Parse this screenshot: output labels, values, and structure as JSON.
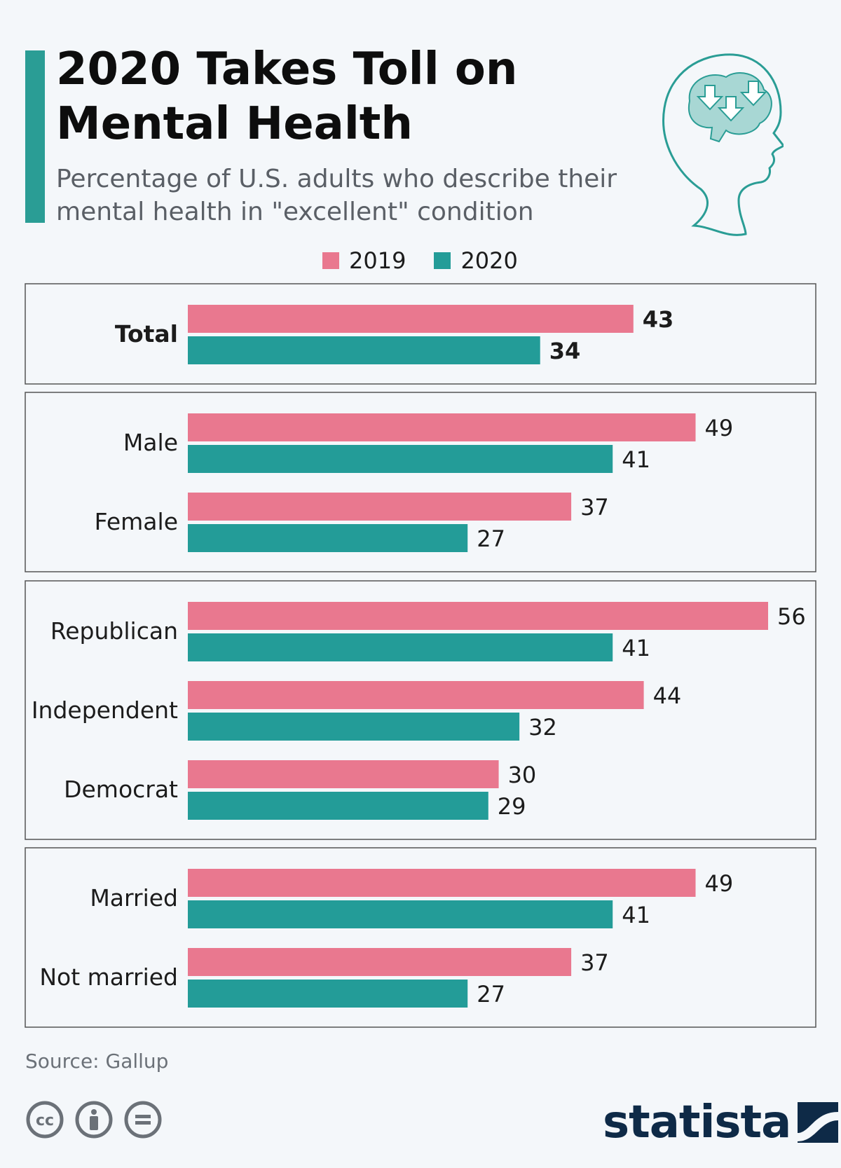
{
  "header": {
    "title": "2020 Takes Toll on Mental Health",
    "subtitle": "Percentage of U.S. adults who describe their mental health in \"excellent\" condition"
  },
  "legend": [
    {
      "label": "2019",
      "color": "#e9788f"
    },
    {
      "label": "2020",
      "color": "#239c98"
    }
  ],
  "footer": {
    "source": "Source: Gallup",
    "brand": "statista",
    "license_icons": [
      "creative-commons-icon",
      "attribution-icon",
      "no-derivatives-icon"
    ]
  },
  "colors": {
    "accent": "#2a9d95",
    "bar_2019": "#e9788f",
    "bar_2020": "#239c98",
    "panel_border": "#555555"
  },
  "chart_data": {
    "type": "bar",
    "orientation": "horizontal",
    "xlim": [
      0,
      56
    ],
    "series_names": [
      "2019",
      "2020"
    ],
    "groups": [
      {
        "rows": [
          {
            "label": "Total",
            "bold": true,
            "values": [
              43,
              34
            ]
          }
        ]
      },
      {
        "rows": [
          {
            "label": "Male",
            "values": [
              49,
              41
            ]
          },
          {
            "label": "Female",
            "values": [
              37,
              27
            ]
          }
        ]
      },
      {
        "rows": [
          {
            "label": "Republican",
            "values": [
              56,
              41
            ]
          },
          {
            "label": "Independent",
            "values": [
              44,
              32
            ]
          },
          {
            "label": "Democrat",
            "values": [
              30,
              29
            ]
          }
        ]
      },
      {
        "rows": [
          {
            "label": "Married",
            "values": [
              49,
              41
            ]
          },
          {
            "label": "Not married",
            "values": [
              37,
              27
            ]
          }
        ]
      }
    ]
  }
}
